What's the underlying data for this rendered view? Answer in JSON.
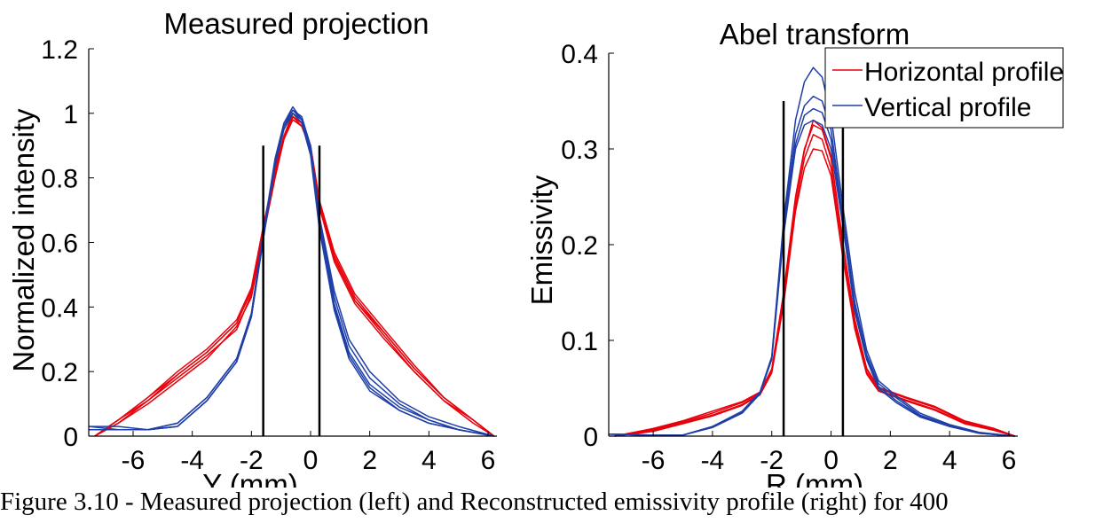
{
  "caption": "Figure 3.10 - Measured projection (left) and Reconstructed emissivity profile (right) for 400",
  "colors": {
    "horizontal": "#e8000b",
    "vertical": "#1f3ea8",
    "marker": "#000000",
    "axis": "#000000"
  },
  "chart_data": [
    {
      "type": "line",
      "title": "Measured projection",
      "xlabel": "Y (mm)",
      "ylabel": "Normalized intensity",
      "xlim": [
        -7.5,
        6.3
      ],
      "ylim": [
        0,
        1.2
      ],
      "xticks": [
        -6,
        -4,
        -2,
        0,
        2,
        4,
        6
      ],
      "yticks": [
        0,
        0.2,
        0.4,
        0.6,
        0.8,
        1,
        1.2
      ],
      "ytick_labels": [
        "0",
        "0.2",
        "0.4",
        "0.6",
        "0.8",
        "1",
        "1.2"
      ],
      "grid": false,
      "vlines": [
        {
          "x": -1.6,
          "ymax": 0.9
        },
        {
          "x": 0.3,
          "ymax": 0.9
        }
      ],
      "series": [
        {
          "group": "horizontal",
          "x": [
            -7.3,
            -6.5,
            -5.5,
            -4.5,
            -3.5,
            -2.5,
            -2.0,
            -1.6,
            -1.2,
            -0.9,
            -0.6,
            -0.3,
            0.0,
            0.3,
            0.8,
            1.5,
            2.5,
            3.5,
            4.5,
            5.5,
            6.2
          ],
          "y": [
            0.0,
            0.05,
            0.12,
            0.19,
            0.26,
            0.35,
            0.45,
            0.64,
            0.82,
            0.93,
            0.99,
            0.97,
            0.9,
            0.72,
            0.56,
            0.43,
            0.32,
            0.21,
            0.12,
            0.05,
            0.0
          ]
        },
        {
          "group": "horizontal",
          "x": [
            -7.3,
            -6.5,
            -5.5,
            -4.5,
            -3.5,
            -2.5,
            -2.0,
            -1.6,
            -1.2,
            -0.9,
            -0.6,
            -0.3,
            0.0,
            0.3,
            0.8,
            1.5,
            2.5,
            3.5,
            4.5,
            5.5,
            6.2
          ],
          "y": [
            0.0,
            0.04,
            0.11,
            0.18,
            0.25,
            0.33,
            0.44,
            0.63,
            0.81,
            0.92,
            0.98,
            0.96,
            0.89,
            0.71,
            0.55,
            0.42,
            0.31,
            0.2,
            0.11,
            0.05,
            0.0
          ]
        },
        {
          "group": "horizontal",
          "x": [
            -7.3,
            -6.5,
            -5.5,
            -4.5,
            -3.5,
            -2.5,
            -2.0,
            -1.6,
            -1.2,
            -0.9,
            -0.6,
            -0.3,
            0.0,
            0.3,
            0.8,
            1.5,
            2.5,
            3.5,
            4.5,
            5.5,
            6.2
          ],
          "y": [
            0.0,
            0.04,
            0.1,
            0.17,
            0.24,
            0.34,
            0.43,
            0.62,
            0.8,
            0.92,
            0.99,
            0.97,
            0.89,
            0.71,
            0.54,
            0.41,
            0.3,
            0.2,
            0.11,
            0.04,
            0.0
          ]
        },
        {
          "group": "horizontal",
          "x": [
            -7.3,
            -6.5,
            -5.5,
            -4.5,
            -3.5,
            -2.5,
            -2.0,
            -1.6,
            -1.2,
            -0.9,
            -0.6,
            -0.3,
            0.0,
            0.3,
            0.8,
            1.5,
            2.5,
            3.5,
            4.5,
            5.5,
            6.2
          ],
          "y": [
            0.0,
            0.05,
            0.12,
            0.2,
            0.27,
            0.36,
            0.46,
            0.65,
            0.83,
            0.93,
            1.0,
            0.97,
            0.9,
            0.73,
            0.57,
            0.44,
            0.33,
            0.22,
            0.12,
            0.05,
            0.0
          ]
        },
        {
          "group": "horizontal",
          "x": [
            -7.3,
            -6.5,
            -5.5,
            -4.5,
            -3.5,
            -2.5,
            -2.0,
            -1.6,
            -1.2,
            -0.9,
            -0.6,
            -0.3,
            0.0,
            0.3,
            0.8,
            1.5,
            2.5,
            3.5,
            4.5,
            5.5,
            6.2
          ],
          "y": [
            0.0,
            0.05,
            0.11,
            0.19,
            0.26,
            0.35,
            0.45,
            0.64,
            0.82,
            0.93,
            0.99,
            0.96,
            0.89,
            0.72,
            0.55,
            0.42,
            0.32,
            0.21,
            0.12,
            0.05,
            0.0
          ]
        },
        {
          "group": "vertical",
          "x": [
            -7.5,
            -6.5,
            -5.5,
            -4.5,
            -3.5,
            -2.5,
            -2.0,
            -1.6,
            -1.2,
            -0.9,
            -0.6,
            -0.3,
            0.0,
            0.3,
            0.8,
            1.3,
            2.0,
            3.0,
            4.0,
            5.0,
            6.2
          ],
          "y": [
            0.02,
            0.02,
            0.02,
            0.04,
            0.12,
            0.24,
            0.38,
            0.62,
            0.85,
            0.96,
            1.01,
            0.98,
            0.88,
            0.65,
            0.4,
            0.25,
            0.15,
            0.08,
            0.04,
            0.02,
            0.0
          ]
        },
        {
          "group": "vertical",
          "x": [
            -7.5,
            -6.5,
            -5.5,
            -4.5,
            -3.5,
            -2.5,
            -2.0,
            -1.6,
            -1.2,
            -0.9,
            -0.6,
            -0.3,
            0.0,
            0.3,
            0.8,
            1.3,
            2.0,
            3.0,
            4.0,
            5.0,
            6.2
          ],
          "y": [
            0.03,
            0.03,
            0.02,
            0.03,
            0.11,
            0.23,
            0.37,
            0.61,
            0.84,
            0.96,
            1.0,
            0.97,
            0.87,
            0.64,
            0.39,
            0.24,
            0.14,
            0.08,
            0.04,
            0.02,
            0.0
          ]
        },
        {
          "group": "vertical",
          "x": [
            -7.5,
            -6.5,
            -5.5,
            -4.5,
            -3.5,
            -2.5,
            -2.0,
            -1.6,
            -1.2,
            -0.9,
            -0.6,
            -0.3,
            0.0,
            0.3,
            0.8,
            1.3,
            2.0,
            3.0,
            4.0,
            5.0,
            6.2
          ],
          "y": [
            0.02,
            0.02,
            0.02,
            0.03,
            0.11,
            0.23,
            0.37,
            0.62,
            0.85,
            0.97,
            1.02,
            0.98,
            0.89,
            0.67,
            0.43,
            0.28,
            0.18,
            0.1,
            0.05,
            0.02,
            0.0
          ]
        },
        {
          "group": "vertical",
          "x": [
            -7.5,
            -6.5,
            -5.5,
            -4.5,
            -3.5,
            -2.5,
            -2.0,
            -1.6,
            -1.2,
            -0.9,
            -0.6,
            -0.3,
            0.0,
            0.3,
            0.8,
            1.3,
            2.0,
            3.0,
            4.0,
            5.0,
            6.2
          ],
          "y": [
            0.03,
            0.02,
            0.02,
            0.04,
            0.12,
            0.24,
            0.38,
            0.63,
            0.86,
            0.97,
            1.01,
            0.99,
            0.9,
            0.68,
            0.45,
            0.3,
            0.2,
            0.11,
            0.06,
            0.03,
            0.0
          ]
        },
        {
          "group": "vertical",
          "x": [
            -7.5,
            -6.5,
            -5.5,
            -4.5,
            -3.5,
            -2.5,
            -2.0,
            -1.6,
            -1.2,
            -0.9,
            -0.6,
            -0.3,
            0.0,
            0.3,
            0.8,
            1.3,
            2.0,
            3.0,
            4.0,
            5.0,
            6.2
          ],
          "y": [
            0.02,
            0.02,
            0.02,
            0.03,
            0.11,
            0.23,
            0.37,
            0.61,
            0.84,
            0.95,
            1.0,
            0.98,
            0.88,
            0.66,
            0.41,
            0.26,
            0.16,
            0.09,
            0.05,
            0.02,
            0.0
          ]
        }
      ]
    },
    {
      "type": "line",
      "title": "Abel transform",
      "xlabel": "R (mm)",
      "ylabel": "Emissivity",
      "xlim": [
        -7.5,
        6.3
      ],
      "ylim": [
        0,
        0.4
      ],
      "xticks": [
        -6,
        -4,
        -2,
        0,
        2,
        4,
        6
      ],
      "yticks": [
        0,
        0.1,
        0.2,
        0.3,
        0.4
      ],
      "ytick_labels": [
        "0",
        "0.1",
        "0.2",
        "0.3",
        "0.4"
      ],
      "grid": false,
      "legend": {
        "position": "top-right",
        "entries": [
          {
            "label": "Horizontal profile",
            "group": "horizontal"
          },
          {
            "label": "Vertical profile",
            "group": "vertical"
          }
        ]
      },
      "vlines": [
        {
          "x": -1.6,
          "ymax": 0.35
        },
        {
          "x": 0.4,
          "ymax": 0.35
        }
      ],
      "series": [
        {
          "group": "horizontal",
          "x": [
            -7.3,
            -6.0,
            -5.0,
            -4.0,
            -3.0,
            -2.4,
            -2.0,
            -1.6,
            -1.2,
            -0.9,
            -0.6,
            -0.3,
            0.0,
            0.4,
            0.8,
            1.2,
            1.6,
            2.5,
            3.5,
            4.5,
            5.5,
            6.2
          ],
          "y": [
            0.0,
            0.008,
            0.016,
            0.026,
            0.036,
            0.046,
            0.07,
            0.15,
            0.25,
            0.3,
            0.325,
            0.32,
            0.29,
            0.2,
            0.12,
            0.07,
            0.05,
            0.04,
            0.03,
            0.015,
            0.008,
            0.0
          ]
        },
        {
          "group": "horizontal",
          "x": [
            -7.3,
            -6.0,
            -5.0,
            -4.0,
            -3.0,
            -2.4,
            -2.0,
            -1.6,
            -1.2,
            -0.9,
            -0.6,
            -0.3,
            0.0,
            0.4,
            0.8,
            1.2,
            1.6,
            2.5,
            3.5,
            4.5,
            5.5,
            6.2
          ],
          "y": [
            0.0,
            0.006,
            0.014,
            0.022,
            0.033,
            0.044,
            0.068,
            0.14,
            0.24,
            0.29,
            0.315,
            0.31,
            0.28,
            0.19,
            0.115,
            0.067,
            0.048,
            0.038,
            0.028,
            0.014,
            0.007,
            0.0
          ]
        },
        {
          "group": "horizontal",
          "x": [
            -7.3,
            -6.0,
            -5.0,
            -4.0,
            -3.0,
            -2.4,
            -2.0,
            -1.6,
            -1.2,
            -0.9,
            -0.6,
            -0.3,
            0.0,
            0.4,
            0.8,
            1.2,
            1.6,
            2.5,
            3.5,
            4.5,
            5.5,
            6.2
          ],
          "y": [
            0.0,
            0.007,
            0.015,
            0.024,
            0.035,
            0.045,
            0.069,
            0.148,
            0.248,
            0.298,
            0.33,
            0.322,
            0.292,
            0.202,
            0.122,
            0.071,
            0.051,
            0.041,
            0.031,
            0.016,
            0.008,
            0.0
          ]
        },
        {
          "group": "horizontal",
          "x": [
            -7.3,
            -6.0,
            -5.0,
            -4.0,
            -3.0,
            -2.4,
            -2.0,
            -1.6,
            -1.2,
            -0.9,
            -0.6,
            -0.3,
            0.0,
            0.4,
            0.8,
            1.2,
            1.6,
            2.5,
            3.5,
            4.5,
            5.5,
            6.2
          ],
          "y": [
            0.0,
            0.005,
            0.013,
            0.021,
            0.032,
            0.043,
            0.066,
            0.138,
            0.235,
            0.28,
            0.3,
            0.298,
            0.272,
            0.186,
            0.112,
            0.065,
            0.047,
            0.037,
            0.027,
            0.013,
            0.006,
            0.0
          ]
        },
        {
          "group": "vertical",
          "x": [
            -7.5,
            -6.0,
            -5.0,
            -4.0,
            -3.0,
            -2.4,
            -2.0,
            -1.6,
            -1.2,
            -0.9,
            -0.6,
            -0.3,
            0.0,
            0.4,
            0.8,
            1.2,
            1.6,
            2.2,
            3.0,
            4.0,
            5.0,
            6.2
          ],
          "y": [
            0.002,
            0.001,
            0.001,
            0.01,
            0.025,
            0.045,
            0.08,
            0.21,
            0.3,
            0.325,
            0.33,
            0.325,
            0.3,
            0.22,
            0.13,
            0.08,
            0.05,
            0.035,
            0.02,
            0.01,
            0.003,
            0.0
          ]
        },
        {
          "group": "vertical",
          "x": [
            -7.5,
            -6.0,
            -5.0,
            -4.0,
            -3.0,
            -2.4,
            -2.0,
            -1.6,
            -1.2,
            -0.9,
            -0.6,
            -0.3,
            0.0,
            0.4,
            0.8,
            1.2,
            1.6,
            2.2,
            3.0,
            4.0,
            5.0,
            6.2
          ],
          "y": [
            0.002,
            0.001,
            0.001,
            0.009,
            0.024,
            0.044,
            0.082,
            0.22,
            0.315,
            0.345,
            0.355,
            0.35,
            0.32,
            0.23,
            0.14,
            0.085,
            0.055,
            0.04,
            0.022,
            0.011,
            0.003,
            0.0
          ]
        },
        {
          "group": "vertical",
          "x": [
            -7.5,
            -6.0,
            -5.0,
            -4.0,
            -3.0,
            -2.4,
            -2.0,
            -1.6,
            -1.2,
            -0.9,
            -0.6,
            -0.3,
            0.0,
            0.4,
            0.8,
            1.2,
            1.6,
            2.2,
            3.0,
            4.0,
            5.0,
            6.2
          ],
          "y": [
            0.002,
            0.001,
            0.001,
            0.01,
            0.025,
            0.045,
            0.081,
            0.215,
            0.305,
            0.335,
            0.342,
            0.338,
            0.31,
            0.225,
            0.135,
            0.082,
            0.052,
            0.037,
            0.021,
            0.01,
            0.003,
            0.0
          ]
        },
        {
          "group": "vertical",
          "x": [
            -7.5,
            -6.0,
            -5.0,
            -4.0,
            -3.0,
            -2.4,
            -2.0,
            -1.6,
            -1.2,
            -0.9,
            -0.6,
            -0.3,
            0.0,
            0.4,
            0.8,
            1.2,
            1.6,
            2.2,
            3.0,
            4.0,
            5.0,
            6.2
          ],
          "y": [
            0.002,
            0.001,
            0.001,
            0.01,
            0.026,
            0.046,
            0.083,
            0.225,
            0.33,
            0.37,
            0.385,
            0.375,
            0.335,
            0.24,
            0.15,
            0.09,
            0.058,
            0.042,
            0.024,
            0.012,
            0.004,
            0.0
          ]
        }
      ]
    }
  ]
}
